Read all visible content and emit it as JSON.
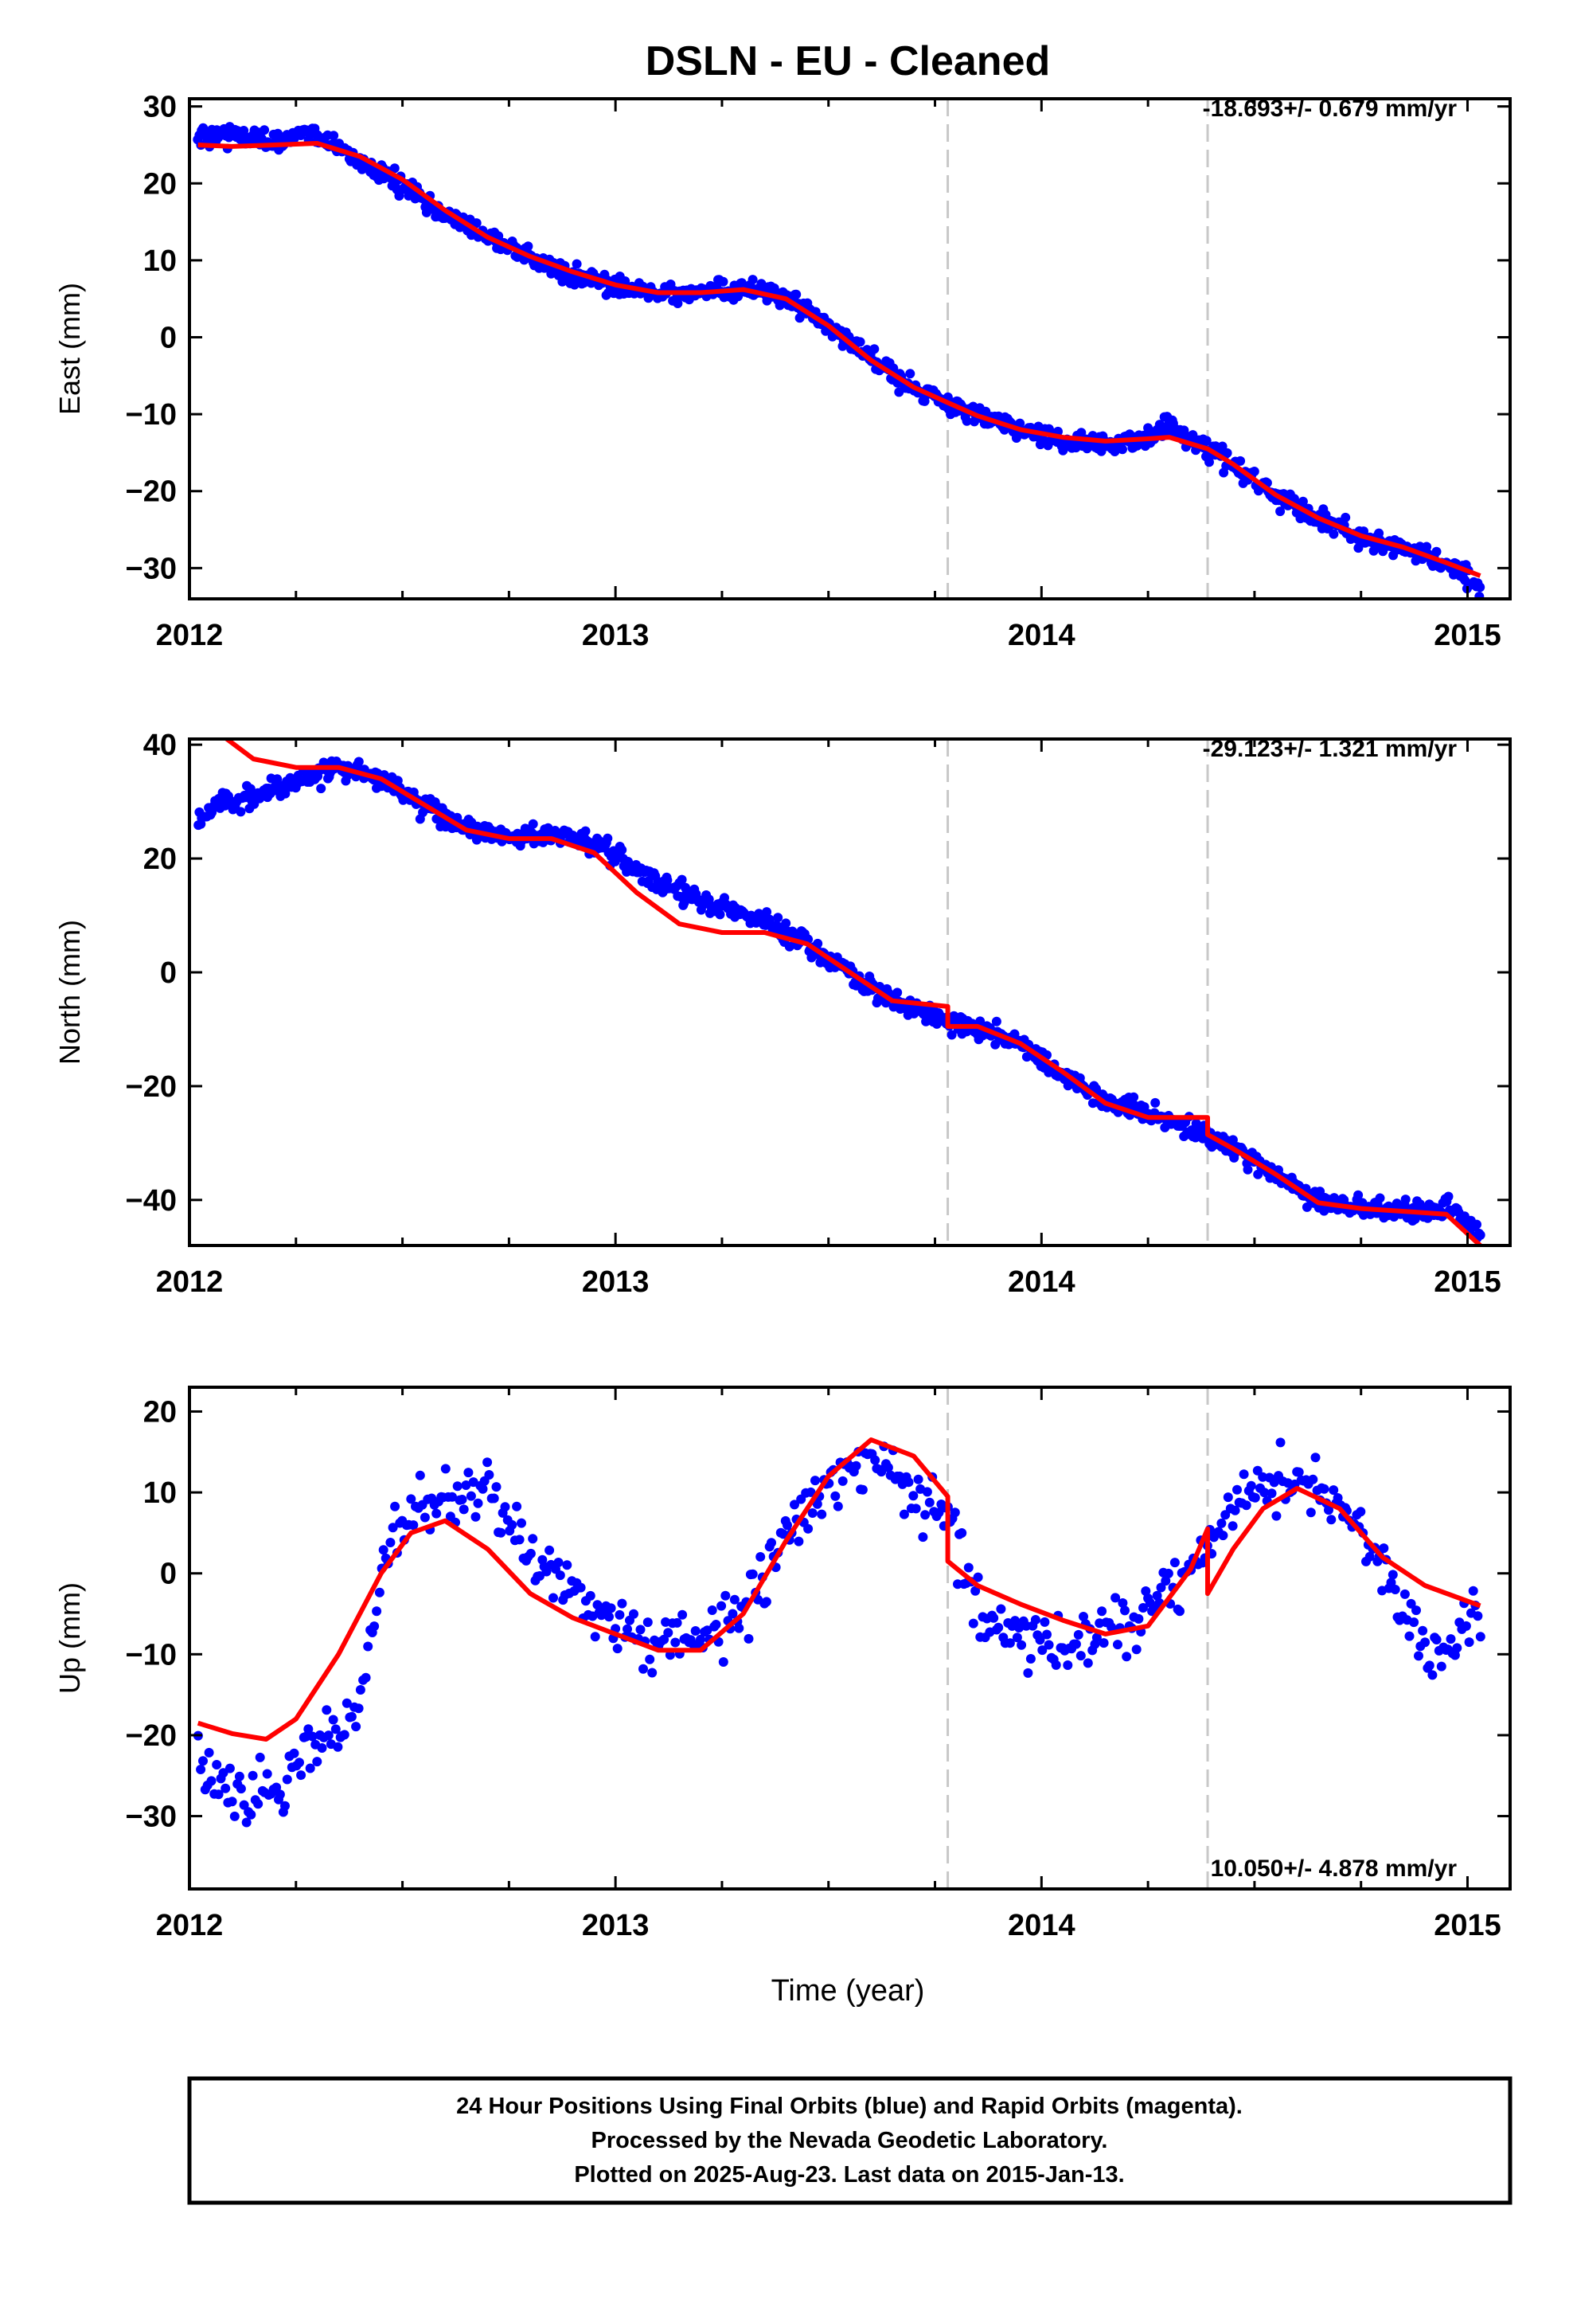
{
  "title": "DSLN  - EU - Cleaned",
  "xlabel": "Time (year)",
  "footer": {
    "line1": "24 Hour Positions Using Final Orbits (blue) and Rapid Orbits (magenta).",
    "line2": "Processed by the Nevada Geodetic Laboratory.",
    "line3": "Plotted on 2025-Aug-23. Last data on 2015-Jan-13."
  },
  "colors": {
    "data": "#0000ff",
    "model": "#ff0000",
    "event": "#c8c8c8",
    "frame": "#000000"
  },
  "chart_data": [
    {
      "type": "scatter",
      "ylabel": "East (mm)",
      "rate_label": "-18.693+/- 0.679 mm/yr",
      "rate_position": "top-right",
      "xlim": [
        2012.0,
        2015.1
      ],
      "ylim": [
        -34,
        31
      ],
      "xticks": [
        2012,
        2013,
        2014,
        2015
      ],
      "yticks": [
        30,
        20,
        10,
        0,
        -10,
        -20,
        -30
      ],
      "ytick_labels": [
        "30",
        "20",
        "10",
        "0",
        "−10",
        "−20",
        "−30"
      ],
      "event_lines": [
        2013.78,
        2014.39
      ],
      "series": [
        {
          "name": "model",
          "kind": "line",
          "color": "#ff0000",
          "x": [
            2012.02,
            2012.1,
            2012.2,
            2012.3,
            2012.4,
            2012.5,
            2012.6,
            2012.7,
            2012.8,
            2012.9,
            2013.0,
            2013.1,
            2013.2,
            2013.3,
            2013.4,
            2013.5,
            2013.6,
            2013.7,
            2013.78,
            2013.85,
            2013.95,
            2014.05,
            2014.15,
            2014.25,
            2014.3,
            2014.39,
            2014.45,
            2014.55,
            2014.65,
            2014.75,
            2014.85,
            2014.95,
            2015.03
          ],
          "y": [
            25,
            24.8,
            25,
            25.2,
            23.5,
            20.5,
            16.5,
            13,
            10.5,
            8.5,
            6.8,
            5.8,
            5.8,
            6.2,
            5,
            1.5,
            -3,
            -6.5,
            -8.5,
            -10.2,
            -12,
            -13,
            -13.5,
            -13.2,
            -13,
            -14.5,
            -16.5,
            -20.5,
            -23.5,
            -25.8,
            -27.3,
            -29.3,
            -31
          ]
        },
        {
          "name": "data",
          "kind": "scatter",
          "color": "#0000ff",
          "scatter": 1.6,
          "x": [
            2012.02,
            2012.1,
            2012.2,
            2012.3,
            2012.4,
            2012.5,
            2012.6,
            2012.7,
            2012.8,
            2012.9,
            2013.0,
            2013.1,
            2013.2,
            2013.3,
            2013.4,
            2013.5,
            2013.6,
            2013.7,
            2013.78,
            2013.85,
            2013.95,
            2014.05,
            2014.15,
            2014.25,
            2014.3,
            2014.39,
            2014.45,
            2014.55,
            2014.65,
            2014.75,
            2014.85,
            2014.95,
            2015.03
          ],
          "y": [
            26,
            26.3,
            25.5,
            26.5,
            23,
            19.5,
            16,
            13.2,
            10.2,
            8.2,
            6.5,
            5.6,
            5.8,
            6.3,
            5.2,
            1.5,
            -3,
            -6.5,
            -8.5,
            -10.2,
            -12,
            -13.5,
            -14,
            -13,
            -11.5,
            -14.5,
            -16.5,
            -20.5,
            -23.5,
            -26,
            -27.5,
            -29.5,
            -32.5
          ]
        }
      ]
    },
    {
      "type": "scatter",
      "ylabel": "North (mm)",
      "rate_label": "-29.123+/- 1.321 mm/yr",
      "rate_position": "top-right",
      "xlim": [
        2012.0,
        2015.1
      ],
      "ylim": [
        -48,
        41
      ],
      "xticks": [
        2012,
        2013,
        2014,
        2015
      ],
      "yticks": [
        40,
        20,
        0,
        -20,
        -40
      ],
      "ytick_labels": [
        "40",
        "20",
        "0",
        "−20",
        "−40"
      ],
      "event_lines": [
        2013.78,
        2014.39
      ],
      "series": [
        {
          "name": "model",
          "kind": "line",
          "color": "#ff0000",
          "x": [
            2012.07,
            2012.15,
            2012.25,
            2012.35,
            2012.45,
            2012.55,
            2012.65,
            2012.75,
            2012.85,
            2012.95,
            2013.05,
            2013.15,
            2013.25,
            2013.35,
            2013.45,
            2013.55,
            2013.65,
            2013.78,
            2013.78,
            2013.85,
            2013.95,
            2014.05,
            2014.15,
            2014.25,
            2014.39,
            2014.39,
            2014.45,
            2014.55,
            2014.65,
            2014.75,
            2014.85,
            2014.95,
            2015.03
          ],
          "y": [
            42,
            37.5,
            36,
            36,
            34,
            29.5,
            25,
            23.5,
            23.5,
            21,
            14,
            8.5,
            7,
            7,
            5,
            0,
            -5,
            -6,
            -9.5,
            -9.5,
            -12.5,
            -17.5,
            -23,
            -25.5,
            -25.5,
            -28.5,
            -31,
            -35.5,
            -40.5,
            -41.5,
            -42,
            -42.5,
            -48
          ]
        },
        {
          "name": "data",
          "kind": "scatter",
          "color": "#0000ff",
          "scatter": 2.2,
          "x": [
            2012.02,
            2012.07,
            2012.15,
            2012.25,
            2012.35,
            2012.45,
            2012.55,
            2012.65,
            2012.75,
            2012.85,
            2012.95,
            2013.05,
            2013.15,
            2013.25,
            2013.35,
            2013.45,
            2013.55,
            2013.65,
            2013.78,
            2013.85,
            2013.95,
            2014.05,
            2014.15,
            2014.25,
            2014.39,
            2014.45,
            2014.55,
            2014.65,
            2014.75,
            2014.85,
            2014.95,
            2015.03
          ],
          "y": [
            27.5,
            29.5,
            31,
            33.5,
            36,
            34,
            29.5,
            25.5,
            23.5,
            24.5,
            22.5,
            18,
            14,
            11.5,
            9,
            5,
            0,
            -5,
            -8.5,
            -9.5,
            -13,
            -18,
            -22.5,
            -25,
            -28.5,
            -31,
            -35.5,
            -40,
            -41.5,
            -42,
            -41.5,
            -46
          ]
        }
      ]
    },
    {
      "type": "scatter",
      "ylabel": "Up (mm)",
      "rate_label": "10.050+/- 4.878 mm/yr",
      "rate_position": "bottom-right",
      "xlim": [
        2012.0,
        2015.1
      ],
      "ylim": [
        -39,
        23
      ],
      "xticks": [
        2012,
        2013,
        2014,
        2015
      ],
      "yticks": [
        20,
        10,
        0,
        -10,
        -20,
        -30
      ],
      "ytick_labels": [
        "20",
        "10",
        "0",
        "−10",
        "−20",
        "−30"
      ],
      "event_lines": [
        2013.78,
        2014.39
      ],
      "series": [
        {
          "name": "model",
          "kind": "line",
          "color": "#ff0000",
          "x": [
            2012.02,
            2012.1,
            2012.18,
            2012.25,
            2012.35,
            2012.45,
            2012.52,
            2012.6,
            2012.7,
            2012.8,
            2012.9,
            2013.0,
            2013.1,
            2013.2,
            2013.3,
            2013.4,
            2013.5,
            2013.6,
            2013.7,
            2013.78,
            2013.78,
            2013.85,
            2013.95,
            2014.05,
            2014.15,
            2014.25,
            2014.35,
            2014.39,
            2014.39,
            2014.45,
            2014.52,
            2014.6,
            2014.7,
            2014.8,
            2014.9,
            2015.03
          ],
          "y": [
            -18.5,
            -19.8,
            -20.5,
            -18,
            -10,
            0,
            5,
            6.5,
            3,
            -2.5,
            -5.5,
            -7.5,
            -9.5,
            -9.5,
            -5,
            4,
            12,
            16.5,
            14.5,
            9.5,
            1.5,
            -1.5,
            -3.8,
            -5.8,
            -7.5,
            -6.5,
            0.5,
            5.5,
            -2.5,
            3,
            8,
            10.5,
            8,
            2,
            -1.5,
            -4
          ]
        },
        {
          "name": "data",
          "kind": "scatter",
          "color": "#0000ff",
          "scatter": 4.5,
          "x": [
            2012.02,
            2012.1,
            2012.18,
            2012.25,
            2012.33,
            2012.4,
            2012.45,
            2012.52,
            2012.6,
            2012.7,
            2012.8,
            2012.9,
            2013.0,
            2013.1,
            2013.2,
            2013.3,
            2013.4,
            2013.5,
            2013.6,
            2013.7,
            2013.78,
            2013.85,
            2013.95,
            2014.05,
            2014.15,
            2014.25,
            2014.35,
            2014.39,
            2014.45,
            2014.52,
            2014.6,
            2014.7,
            2014.8,
            2014.85,
            2014.9,
            2014.95,
            2015.03
          ],
          "y": [
            -24,
            -27,
            -28,
            -24,
            -20,
            -17,
            1,
            7,
            10,
            10,
            3,
            -2,
            -6,
            -9,
            -9,
            -4,
            4,
            12,
            14,
            10,
            7,
            -5,
            -8,
            -9,
            -7,
            -5,
            1,
            3,
            8,
            11,
            11,
            8,
            2,
            -4,
            -10,
            -9,
            -4
          ]
        }
      ]
    }
  ]
}
